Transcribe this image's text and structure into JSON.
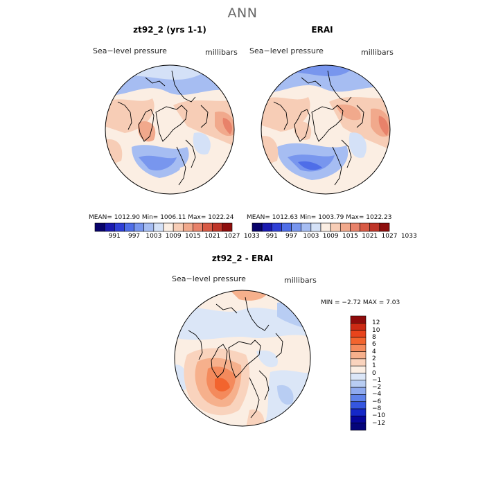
{
  "main_title": "ANN",
  "panels": [
    {
      "title": "zt92_2 (yrs 1-1)",
      "variable": "Sea−level pressure",
      "units": "millibars",
      "stats": "MEAN= 1012.90   Min= 1006.11   Max= 1022.24"
    },
    {
      "title": "ERAI",
      "variable": "Sea−level pressure",
      "units": "millibars",
      "stats": "MEAN= 1012.63   Min= 1003.79   Max= 1022.23"
    },
    {
      "title": "zt92_2 - ERAI",
      "variable": "Sea−level pressure",
      "units": "millibars",
      "stats": "MIN =   −2.72  MAX =    7.03"
    }
  ],
  "abs_colorbar": {
    "labels": [
      "991",
      "997",
      "1003",
      "1009",
      "1015",
      "1021",
      "1027",
      "1033"
    ],
    "colors": [
      "#08036b",
      "#1a1ab0",
      "#2f3fd6",
      "#4f6ee8",
      "#7896ee",
      "#a6bdf2",
      "#d4e1f7",
      "#fbeee3",
      "#f7cdb6",
      "#f1a98c",
      "#e8826a",
      "#d85a45",
      "#bf3528",
      "#8e0e0d"
    ]
  },
  "diff_colorbar": {
    "labels": [
      "12",
      "10",
      "8",
      "6",
      "4",
      "2",
      "1",
      "0",
      "−1",
      "−2",
      "−4",
      "−6",
      "−8",
      "−10",
      "−12"
    ],
    "colors": [
      "#8e0b0b",
      "#cc2a14",
      "#e8441c",
      "#f2642e",
      "#f48a5c",
      "#f6b08c",
      "#f9d3bd",
      "#fbeee3",
      "#dbe6f7",
      "#b8cdf3",
      "#8faaef",
      "#5f82ea",
      "#3556e0",
      "#1528c8",
      "#06069a",
      "#04047a"
    ]
  },
  "map_colors": {
    "ocean_base": "#fbeee3",
    "land_outline": "#000000"
  }
}
